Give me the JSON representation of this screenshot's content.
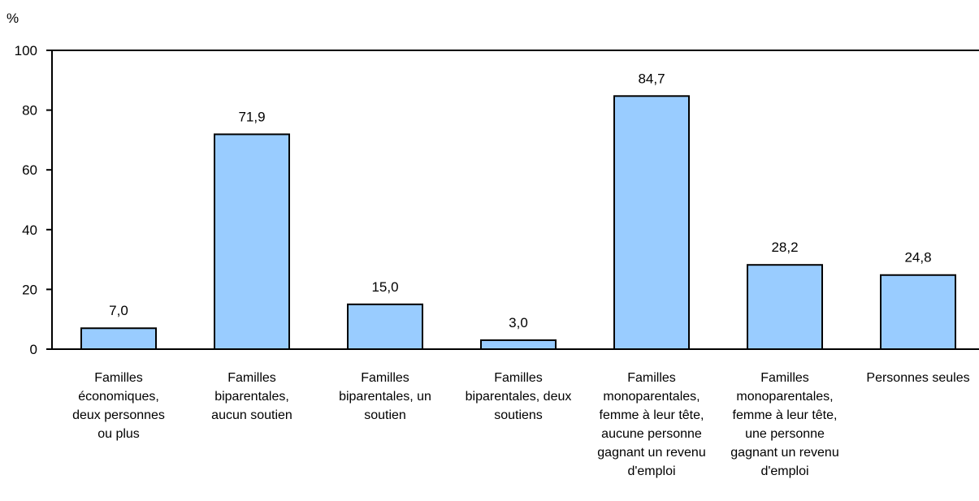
{
  "chart_data": {
    "type": "bar",
    "ylabel": "%",
    "ylim": [
      0,
      100
    ],
    "yticks": [
      0,
      20,
      40,
      60,
      80,
      100
    ],
    "ytick_labels": [
      "0",
      "20",
      "40",
      "60",
      "80",
      "100"
    ],
    "grid": false,
    "bar_color": "#99ccff",
    "bar_edge_color": "#000000",
    "categories": [
      [
        "Familles",
        "économiques,",
        "deux personnes",
        "ou plus"
      ],
      [
        "Familles",
        "biparentales,",
        "aucun soutien"
      ],
      [
        "Familles",
        "biparentales, un",
        "soutien"
      ],
      [
        "Familles",
        "biparentales, deux",
        "soutiens"
      ],
      [
        "Familles",
        "monoparentales,",
        "femme à leur tête,",
        "aucune personne",
        "gagnant un revenu",
        "d'emploi"
      ],
      [
        "Familles",
        "monoparentales,",
        "femme à leur tête,",
        "une personne",
        "gagnant un revenu",
        "d'emploi"
      ],
      [
        "Personnes seules"
      ]
    ],
    "values": [
      7.0,
      71.9,
      15.0,
      3.0,
      84.7,
      28.2,
      24.8
    ],
    "value_labels": [
      "7,0",
      "71,9",
      "15,0",
      "3,0",
      "84,7",
      "28,2",
      "24,8"
    ]
  }
}
